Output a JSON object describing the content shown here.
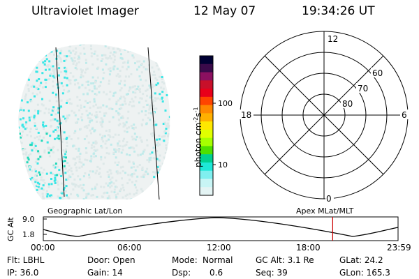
{
  "header": {
    "instrument": "Ultraviolet Imager",
    "date": "12 May 07",
    "time": "19:34:26 UT"
  },
  "colorbar": {
    "label": "photon cm^-2 s^-1",
    "ticks": [
      "100",
      "10"
    ],
    "colors": [
      "#000033",
      "#3a0a4a",
      "#8c1060",
      "#c8102a",
      "#e8001a",
      "#ff4400",
      "#ff8800",
      "#ffb000",
      "#ffe800",
      "#e0ff00",
      "#a6ff00",
      "#4ee000",
      "#00d090",
      "#1ee8d8",
      "#7fefef",
      "#c8f5f5",
      "#e4f4f4"
    ]
  },
  "polar": {
    "mlt_labels": [
      "12",
      "18",
      "6",
      "0"
    ],
    "lat_labels": [
      "60",
      "70",
      "80"
    ]
  },
  "timeline": {
    "left_label": "Geographic Lat/Lon",
    "right_label": "Apex MLat/MLT",
    "axis_title": "GC Alt",
    "y_ticks": [
      "9.0",
      "1.8"
    ],
    "x_ticks": [
      "00:00",
      "06:00",
      "12:00",
      "18:00",
      "23:59"
    ],
    "current_marker_hours": 19.58,
    "marker_color": "#cc0000"
  },
  "info": {
    "flt": "Flt: LBHL",
    "ip": "IP: 36.0",
    "door": "Door: Open",
    "gain": "Gain: 14",
    "mode_label": "Mode:",
    "mode_value": "Normal",
    "dsp_label": "Dsp:",
    "dsp_value": "0.6",
    "gcalt": "GC Alt: 3.1 Re",
    "seq": "Seq: 39",
    "glat": "GLat: 24.2",
    "glon": "GLon: 165.3"
  },
  "image_colors": {
    "dot_light": "#dde8e8",
    "dot_mid": "#bfeaea",
    "dot_cyan": "#3be6e6",
    "dot_teal": "#22d8b8"
  }
}
